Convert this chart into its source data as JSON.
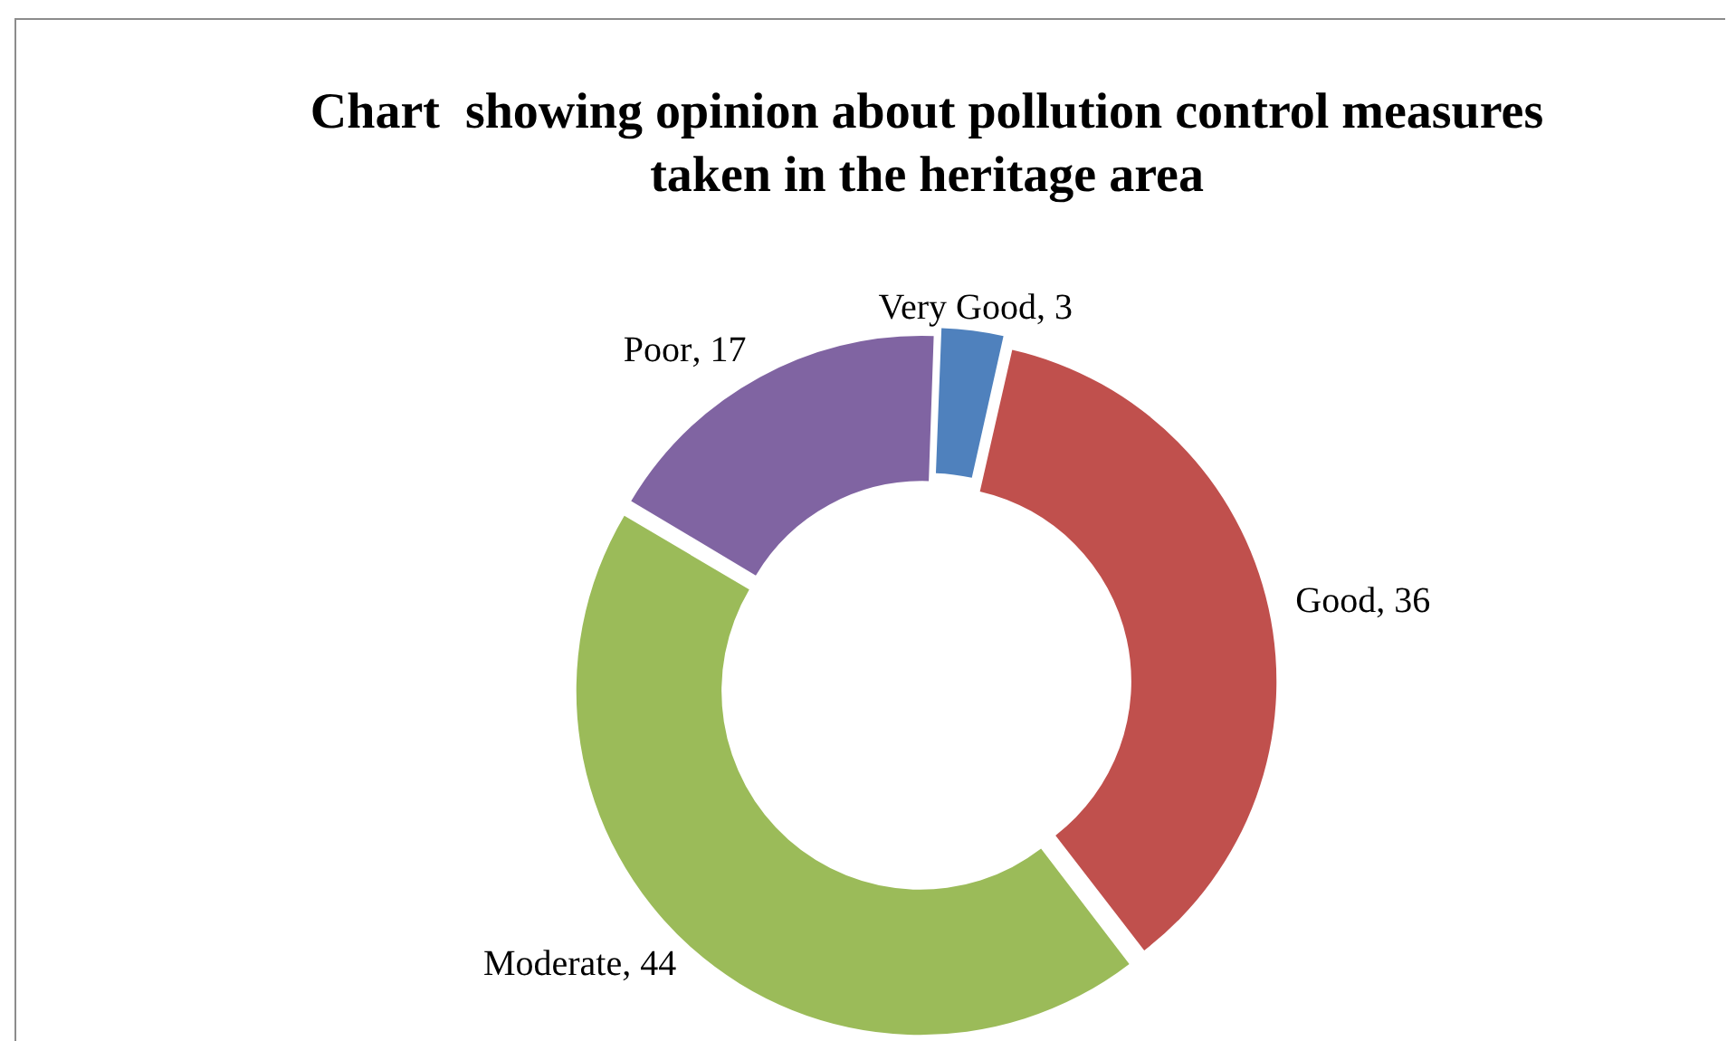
{
  "chart_data": {
    "type": "donut",
    "title": "Chart  showing opinion about pollution control measures taken in the heritage area",
    "categories": [
      "Very Good",
      "Good",
      "Moderate",
      "Poor"
    ],
    "values": [
      3,
      36,
      44,
      17
    ],
    "colors": [
      "#4f81bd",
      "#c0504d",
      "#9bbb59",
      "#8064a2"
    ],
    "value_labels": [
      ", 3",
      ", 36",
      ", 44",
      ", 17"
    ],
    "legend": false
  }
}
